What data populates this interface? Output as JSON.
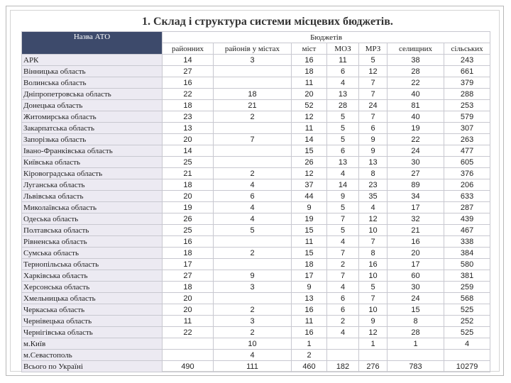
{
  "title": "1. Склад і структура системи місцевих бюджетів.",
  "table": {
    "name_header": "Назва АТО",
    "group_header": "Бюджетів",
    "columns": [
      "районних",
      "районів у містах",
      "міст",
      "МОЗ",
      "МРЗ",
      "селищних",
      "сільських"
    ],
    "rows": [
      [
        "АРК",
        14,
        3,
        16,
        11,
        5,
        38,
        243
      ],
      [
        "Вінницька область",
        27,
        null,
        18,
        6,
        12,
        28,
        661
      ],
      [
        "Волинська область",
        16,
        null,
        11,
        4,
        7,
        22,
        379
      ],
      [
        "Дніпропетровська область",
        22,
        18,
        20,
        13,
        7,
        40,
        288
      ],
      [
        "Донецька область",
        18,
        21,
        52,
        28,
        24,
        81,
        253
      ],
      [
        "Житомирська область",
        23,
        2,
        12,
        5,
        7,
        40,
        579
      ],
      [
        "Закарпатська область",
        13,
        null,
        11,
        5,
        6,
        19,
        307
      ],
      [
        "Запорізька область",
        20,
        7,
        14,
        5,
        9,
        22,
        263
      ],
      [
        "Івано-Франківська область",
        14,
        null,
        15,
        6,
        9,
        24,
        477
      ],
      [
        "Київська область",
        25,
        null,
        26,
        13,
        13,
        30,
        605
      ],
      [
        "Кіровоградська область",
        21,
        2,
        12,
        4,
        8,
        27,
        376
      ],
      [
        "Луганська область",
        18,
        4,
        37,
        14,
        23,
        89,
        206
      ],
      [
        "Львівська область",
        20,
        6,
        44,
        9,
        35,
        34,
        633
      ],
      [
        "Миколаївська область",
        19,
        4,
        9,
        5,
        4,
        17,
        287
      ],
      [
        "Одеська область",
        26,
        4,
        19,
        7,
        12,
        32,
        439
      ],
      [
        "Полтавська область",
        25,
        5,
        15,
        5,
        10,
        21,
        467
      ],
      [
        "Рівненська область",
        16,
        null,
        11,
        4,
        7,
        16,
        338
      ],
      [
        "Сумська область",
        18,
        2,
        15,
        7,
        8,
        20,
        384
      ],
      [
        "Тернопільська область",
        17,
        null,
        18,
        2,
        16,
        17,
        580
      ],
      [
        "Харківська область",
        27,
        9,
        17,
        7,
        10,
        60,
        381
      ],
      [
        "Херсонська область",
        18,
        3,
        9,
        4,
        5,
        30,
        259
      ],
      [
        "Хмельницька область",
        20,
        null,
        13,
        6,
        7,
        24,
        568
      ],
      [
        "Черкаська область",
        20,
        2,
        16,
        6,
        10,
        15,
        525
      ],
      [
        "Чернівецька область",
        11,
        3,
        11,
        2,
        9,
        8,
        252
      ],
      [
        "Чернігівська область",
        22,
        2,
        16,
        4,
        12,
        28,
        525
      ],
      [
        "м.Київ",
        null,
        10,
        1,
        null,
        1,
        1,
        4
      ],
      [
        "м.Севастополь",
        null,
        4,
        2,
        null,
        null,
        null,
        null
      ],
      [
        "Всього по Україні",
        490,
        111,
        460,
        182,
        276,
        783,
        10279
      ]
    ]
  }
}
